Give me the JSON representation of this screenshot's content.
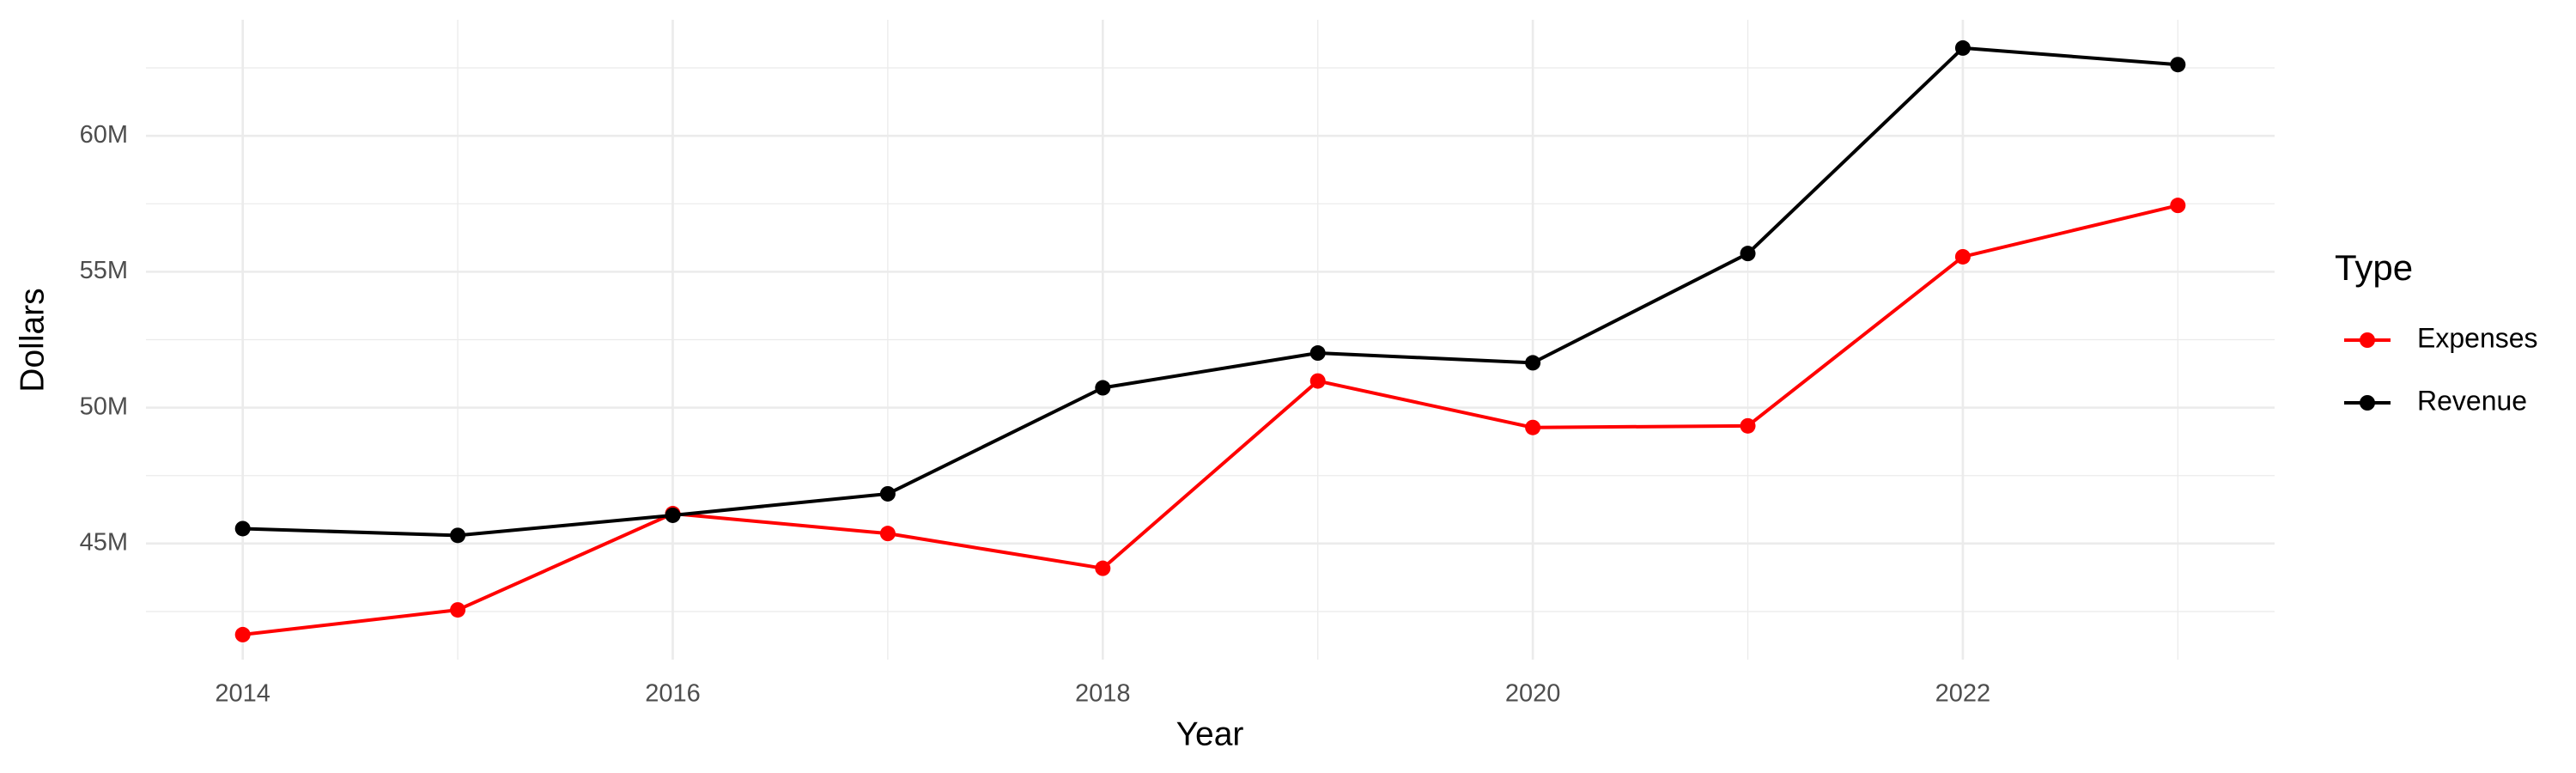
{
  "chart_data": {
    "type": "line",
    "x_label": "Year",
    "y_label": "Dollars",
    "legend_title": "Type",
    "legend_position": "right",
    "grid": true,
    "x": [
      2014,
      2015,
      2016,
      2017,
      2018,
      2019,
      2020,
      2021,
      2022,
      2023
    ],
    "series": [
      {
        "name": "Expenses",
        "color": "#ff0000",
        "values": [
          41650000,
          42560000,
          46100000,
          45370000,
          44090000,
          50980000,
          49270000,
          49330000,
          55550000,
          57440000
        ]
      },
      {
        "name": "Revenue",
        "color": "#000000",
        "values": [
          45550000,
          45300000,
          46040000,
          46830000,
          50730000,
          52010000,
          51650000,
          55670000,
          63230000,
          62620000
        ]
      }
    ],
    "xlim": [
      2013.55,
      2023.45
    ],
    "xticks": [
      2014,
      2016,
      2018,
      2020,
      2022
    ],
    "ylim": [
      40730000,
      64270000
    ],
    "yticks": [
      {
        "value": 45000000,
        "label": "45M"
      },
      {
        "value": 50000000,
        "label": "50M"
      },
      {
        "value": 55000000,
        "label": "55M"
      },
      {
        "value": 60000000,
        "label": "60M"
      }
    ]
  }
}
